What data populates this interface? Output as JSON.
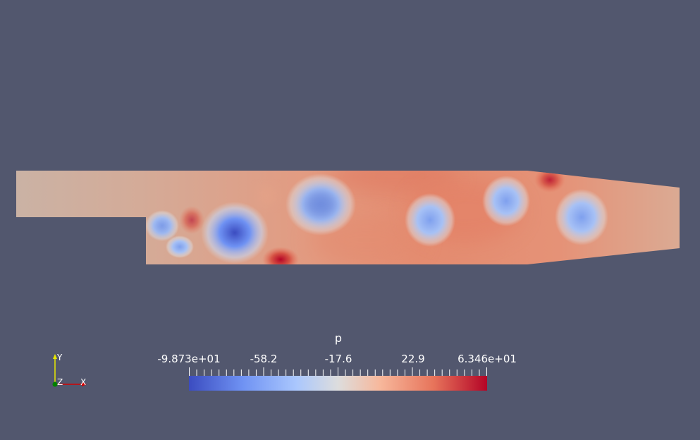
{
  "scalar": {
    "name": "p"
  },
  "colorbar": {
    "tick_labels": [
      "-9.873e+01",
      "-58.2",
      "-17.6",
      "22.9",
      "6.346e+01"
    ],
    "min_label": "-9.873e+01",
    "max_label": "6.346e+01",
    "colors": {
      "low": "#3b4cc0",
      "mid": "#dddddd",
      "high": "#b40426"
    }
  },
  "axes": {
    "x": "X",
    "y": "Y",
    "z": "Z"
  },
  "colors": {
    "background": "#52576e",
    "axis_x": "#d40000",
    "axis_y": "#e8e800",
    "axis_z": "#008000"
  }
}
